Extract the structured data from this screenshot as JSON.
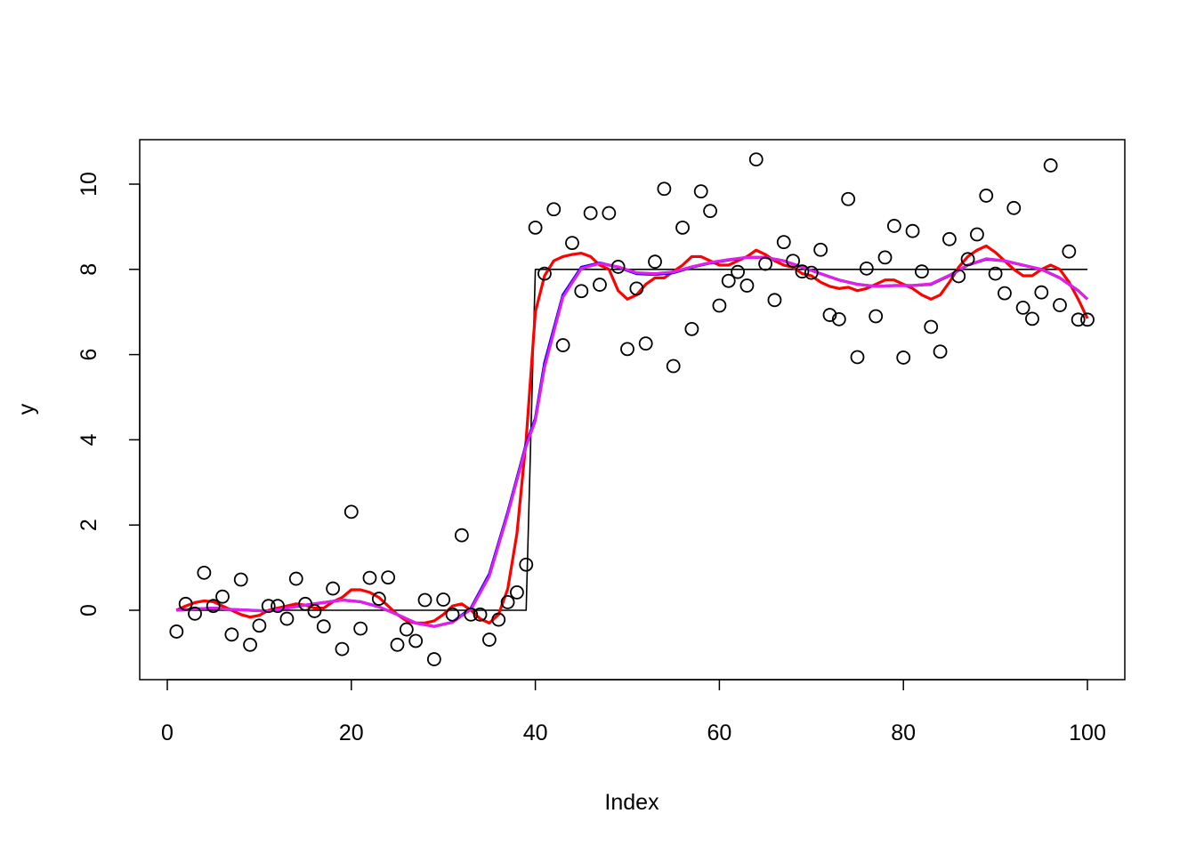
{
  "chart_data": {
    "type": "scatter",
    "title": "",
    "xlabel": "Index",
    "ylabel": "y",
    "xlim": [
      0,
      100
    ],
    "ylim": [
      -1.6,
      11
    ],
    "x_ticks": [
      0,
      20,
      40,
      60,
      80,
      100
    ],
    "x_tick_labels": [
      "0",
      "20",
      "40",
      "60",
      "80",
      "100"
    ],
    "y_ticks": [
      0,
      2,
      4,
      6,
      8,
      10
    ],
    "y_tick_labels": [
      "0",
      "2",
      "4",
      "6",
      "8",
      "10"
    ],
    "grid": false,
    "legend": "none",
    "points": {
      "x": [
        1,
        2,
        3,
        4,
        5,
        6,
        7,
        8,
        9,
        10,
        11,
        12,
        13,
        14,
        15,
        16,
        17,
        18,
        19,
        20,
        21,
        22,
        23,
        24,
        25,
        26,
        27,
        28,
        29,
        30,
        31,
        32,
        33,
        34,
        35,
        36,
        37,
        38,
        39,
        40,
        41,
        42,
        43,
        44,
        45,
        46,
        47,
        48,
        49,
        50,
        51,
        52,
        53,
        54,
        55,
        56,
        57,
        58,
        59,
        60,
        61,
        62,
        63,
        64,
        65,
        66,
        67,
        68,
        69,
        70,
        71,
        72,
        73,
        74,
        75,
        76,
        77,
        78,
        79,
        80,
        81,
        82,
        83,
        84,
        85,
        86,
        87,
        88,
        89,
        90,
        91,
        92,
        93,
        94,
        95,
        96,
        97,
        98,
        99,
        100
      ],
      "y": [
        -0.5,
        0.15,
        -0.08,
        0.88,
        0.1,
        0.32,
        -0.57,
        0.72,
        -0.81,
        -0.36,
        0.1,
        0.1,
        -0.2,
        0.74,
        0.15,
        -0.02,
        -0.38,
        0.51,
        -0.91,
        2.31,
        -0.43,
        0.76,
        0.27,
        0.77,
        -0.81,
        -0.45,
        -0.72,
        0.24,
        -1.15,
        0.25,
        -0.1,
        1.76,
        -0.1,
        -0.1,
        -0.69,
        -0.22,
        0.19,
        0.42,
        1.07,
        8.98,
        7.9,
        9.41,
        6.22,
        8.62,
        7.49,
        9.32,
        7.64,
        9.32,
        8.06,
        6.13,
        7.55,
        6.26,
        8.18,
        9.89,
        5.73,
        8.98,
        6.6,
        9.83,
        9.37,
        7.15,
        7.73,
        7.94,
        7.62,
        10.58,
        8.13,
        7.28,
        8.64,
        8.2,
        7.95,
        7.92,
        8.46,
        6.93,
        6.83,
        9.65,
        5.94,
        8.02,
        6.9,
        8.28,
        9.02,
        5.93,
        8.9,
        7.95,
        6.65,
        6.07,
        8.71,
        7.84,
        8.24,
        8.82,
        9.73,
        7.9,
        7.44,
        9.44,
        7.1,
        6.84,
        7.46,
        10.44,
        7.16,
        8.42,
        6.82,
        6.82
      ],
      "color": "#000000",
      "marker": "open-circle"
    },
    "series": [
      {
        "role": "true-step",
        "color": "#000000",
        "x": [
          1,
          39,
          40,
          100
        ],
        "y": [
          0,
          0,
          8,
          8
        ]
      },
      {
        "role": "red-smooth",
        "color": "#ff0000",
        "x": [
          1,
          2,
          3,
          4,
          5,
          6,
          7,
          8,
          9,
          10,
          11,
          12,
          13,
          14,
          15,
          16,
          17,
          18,
          19,
          20,
          21,
          22,
          23,
          24,
          25,
          26,
          27,
          28,
          29,
          30,
          31,
          32,
          33,
          34,
          35,
          36,
          37,
          38,
          39,
          40,
          41,
          42,
          43,
          44,
          45,
          46,
          47,
          48,
          49,
          50,
          51,
          52,
          53,
          54,
          55,
          56,
          57,
          58,
          59,
          60,
          61,
          62,
          63,
          64,
          65,
          66,
          67,
          68,
          69,
          70,
          71,
          72,
          73,
          74,
          75,
          76,
          77,
          78,
          79,
          80,
          81,
          82,
          83,
          84,
          85,
          86,
          87,
          88,
          89,
          90,
          91,
          92,
          93,
          94,
          95,
          96,
          97,
          98,
          99,
          100
        ],
        "y": [
          0,
          0.1,
          0.18,
          0.22,
          0.2,
          0.1,
          0,
          -0.1,
          -0.16,
          -0.12,
          0,
          0.05,
          0.1,
          0.15,
          0.12,
          0.05,
          0.05,
          0.2,
          0.3,
          0.48,
          0.48,
          0.42,
          0.3,
          0.1,
          -0.1,
          -0.25,
          -0.3,
          -0.3,
          -0.25,
          -0.1,
          0.1,
          0.15,
          0,
          -0.2,
          -0.3,
          -0.1,
          0.5,
          1.8,
          4,
          7,
          7.85,
          8.2,
          8.3,
          8.35,
          8.38,
          8.3,
          8.1,
          8,
          7.5,
          7.3,
          7.4,
          7.65,
          7.8,
          7.8,
          7.95,
          8.1,
          8.3,
          8.3,
          8.2,
          8.1,
          8.1,
          8.2,
          8.3,
          8.45,
          8.35,
          8.2,
          8.1,
          8.05,
          7.9,
          7.85,
          7.7,
          7.6,
          7.55,
          7.58,
          7.5,
          7.55,
          7.65,
          7.75,
          7.75,
          7.65,
          7.55,
          7.4,
          7.3,
          7.4,
          7.7,
          8.05,
          8.3,
          8.45,
          8.55,
          8.4,
          8.2,
          8,
          7.85,
          7.85,
          8,
          8.1,
          8,
          7.7,
          7.3,
          6.85
        ]
      },
      {
        "role": "blue-smooth",
        "color": "#0000ff",
        "x": [
          1,
          3,
          5,
          7,
          9,
          11,
          13,
          15,
          17,
          19,
          21,
          23,
          25,
          27,
          29,
          31,
          33,
          35,
          37,
          39,
          40,
          41,
          43,
          45,
          47,
          49,
          51,
          53,
          55,
          57,
          59,
          61,
          63,
          65,
          67,
          69,
          71,
          73,
          75,
          77,
          79,
          81,
          83,
          85,
          87,
          89,
          91,
          93,
          95,
          97,
          99,
          100
        ],
        "y": [
          0,
          0.03,
          0.05,
          0.02,
          0,
          -0.02,
          0.05,
          0.12,
          0.18,
          0.24,
          0.2,
          0.08,
          -0.1,
          -0.3,
          -0.38,
          -0.28,
          0.05,
          0.85,
          2.3,
          3.9,
          4.5,
          5.8,
          7.4,
          8.05,
          8.15,
          8.05,
          7.9,
          7.88,
          7.92,
          8.05,
          8.15,
          8.22,
          8.28,
          8.28,
          8.2,
          8.05,
          7.9,
          7.75,
          7.65,
          7.6,
          7.62,
          7.62,
          7.65,
          7.85,
          8.1,
          8.24,
          8.2,
          8.1,
          8.0,
          7.8,
          7.5,
          7.3
        ]
      },
      {
        "role": "magenta-smooth",
        "color": "#e21fe6",
        "x": [
          1,
          3,
          5,
          7,
          9,
          11,
          13,
          15,
          17,
          19,
          21,
          23,
          25,
          27,
          29,
          31,
          33,
          35,
          37,
          39,
          40,
          41,
          43,
          45,
          47,
          49,
          51,
          53,
          55,
          57,
          59,
          61,
          63,
          65,
          67,
          69,
          71,
          73,
          75,
          77,
          79,
          81,
          83,
          85,
          87,
          89,
          91,
          93,
          95,
          97,
          99,
          100
        ],
        "y": [
          0,
          0.03,
          0.05,
          0.02,
          0,
          -0.02,
          0.05,
          0.12,
          0.18,
          0.24,
          0.2,
          0.08,
          -0.1,
          -0.3,
          -0.38,
          -0.28,
          0.02,
          0.8,
          2.25,
          3.85,
          4.45,
          5.7,
          7.35,
          8.02,
          8.14,
          8.06,
          7.92,
          7.9,
          7.94,
          8.06,
          8.16,
          8.23,
          8.28,
          8.28,
          8.2,
          8.05,
          7.9,
          7.75,
          7.65,
          7.6,
          7.62,
          7.62,
          7.66,
          7.86,
          8.1,
          8.25,
          8.2,
          8.1,
          8.0,
          7.8,
          7.5,
          7.3
        ]
      }
    ]
  }
}
